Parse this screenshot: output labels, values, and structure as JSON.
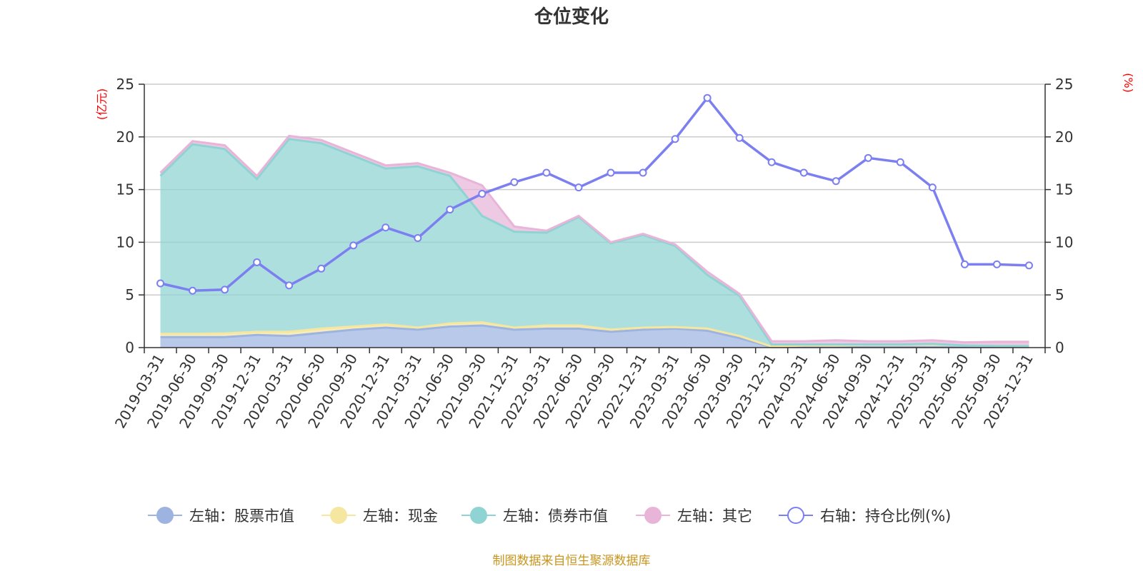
{
  "chart_data": {
    "type": "area+line",
    "title": "仓位变化",
    "left_axis_unit": "(亿元)",
    "right_axis_unit": "(%)",
    "ylim_left": [
      0,
      25
    ],
    "ylim_right": [
      0,
      25
    ],
    "yticks_left": [
      0,
      5,
      10,
      15,
      20,
      25
    ],
    "yticks_right": [
      0,
      5,
      10,
      15,
      20,
      25
    ],
    "categories": [
      "2019-03-31",
      "2019-06-30",
      "2019-09-30",
      "2019-12-31",
      "2020-03-31",
      "2020-06-30",
      "2020-09-30",
      "2020-12-31",
      "2021-03-31",
      "2021-06-30",
      "2021-09-30",
      "2021-12-31",
      "2022-03-31",
      "2022-06-30",
      "2022-09-30",
      "2022-12-31",
      "2023-03-31",
      "2023-06-30",
      "2023-09-30",
      "2023-12-31",
      "2024-03-31",
      "2024-06-30",
      "2024-09-30",
      "2024-12-31",
      "2025-03-31",
      "2025-06-30",
      "2025-09-30",
      "2025-12-31"
    ],
    "series": [
      {
        "name": "左轴：股票市值",
        "axis": "left",
        "type": "stacked-area",
        "color": "#9db4e0",
        "values": [
          1.0,
          1.0,
          1.0,
          1.2,
          1.1,
          1.4,
          1.7,
          1.9,
          1.7,
          2.0,
          2.1,
          1.7,
          1.8,
          1.8,
          1.5,
          1.7,
          1.8,
          1.6,
          0.9,
          0.05,
          0.05,
          0.05,
          0.05,
          0.05,
          0.05,
          0.05,
          0.05,
          0.05
        ]
      },
      {
        "name": "左轴：现金",
        "axis": "left",
        "type": "stacked-area",
        "color": "#f5e6a0",
        "values": [
          0.3,
          0.3,
          0.35,
          0.3,
          0.4,
          0.4,
          0.3,
          0.3,
          0.2,
          0.3,
          0.3,
          0.2,
          0.3,
          0.3,
          0.2,
          0.2,
          0.15,
          0.2,
          0.2,
          0.05,
          0.15,
          0.15,
          0.2,
          0.2,
          0.25,
          0.15,
          0.1,
          0.1
        ]
      },
      {
        "name": "左轴：债券市值",
        "axis": "left",
        "type": "stacked-area",
        "color": "#8fd3d3",
        "values": [
          15.0,
          18.0,
          17.5,
          14.5,
          18.3,
          17.6,
          16.2,
          14.8,
          15.3,
          14.0,
          10.1,
          9.1,
          8.8,
          10.3,
          8.2,
          8.8,
          7.7,
          5.1,
          3.8,
          0.2,
          0.1,
          0.1,
          0.05,
          0.05,
          0.05,
          0.0,
          0.0,
          0.0
        ]
      },
      {
        "name": "左轴：其它",
        "axis": "left",
        "type": "stacked-area",
        "color": "#e8b4d8",
        "values": [
          0.3,
          0.3,
          0.35,
          0.3,
          0.3,
          0.3,
          0.3,
          0.3,
          0.3,
          0.3,
          2.9,
          0.5,
          0.2,
          0.1,
          0.1,
          0.1,
          0.15,
          0.3,
          0.2,
          0.3,
          0.3,
          0.4,
          0.3,
          0.3,
          0.35,
          0.3,
          0.4,
          0.4
        ]
      },
      {
        "name": "右轴：持仓比例(%)",
        "axis": "right",
        "type": "line",
        "color": "#7b7ff0",
        "values": [
          6.1,
          5.4,
          5.5,
          8.1,
          5.9,
          7.5,
          9.7,
          11.4,
          10.4,
          13.1,
          14.6,
          15.7,
          16.6,
          15.2,
          16.6,
          16.6,
          19.8,
          23.7,
          19.9,
          17.6,
          16.6,
          15.8,
          18.0,
          17.6,
          15.2,
          7.9,
          7.9,
          7.8
        ]
      }
    ],
    "legend_position": "bottom-center",
    "grid": true
  },
  "source_text": "制图数据来自恒生聚源数据库"
}
